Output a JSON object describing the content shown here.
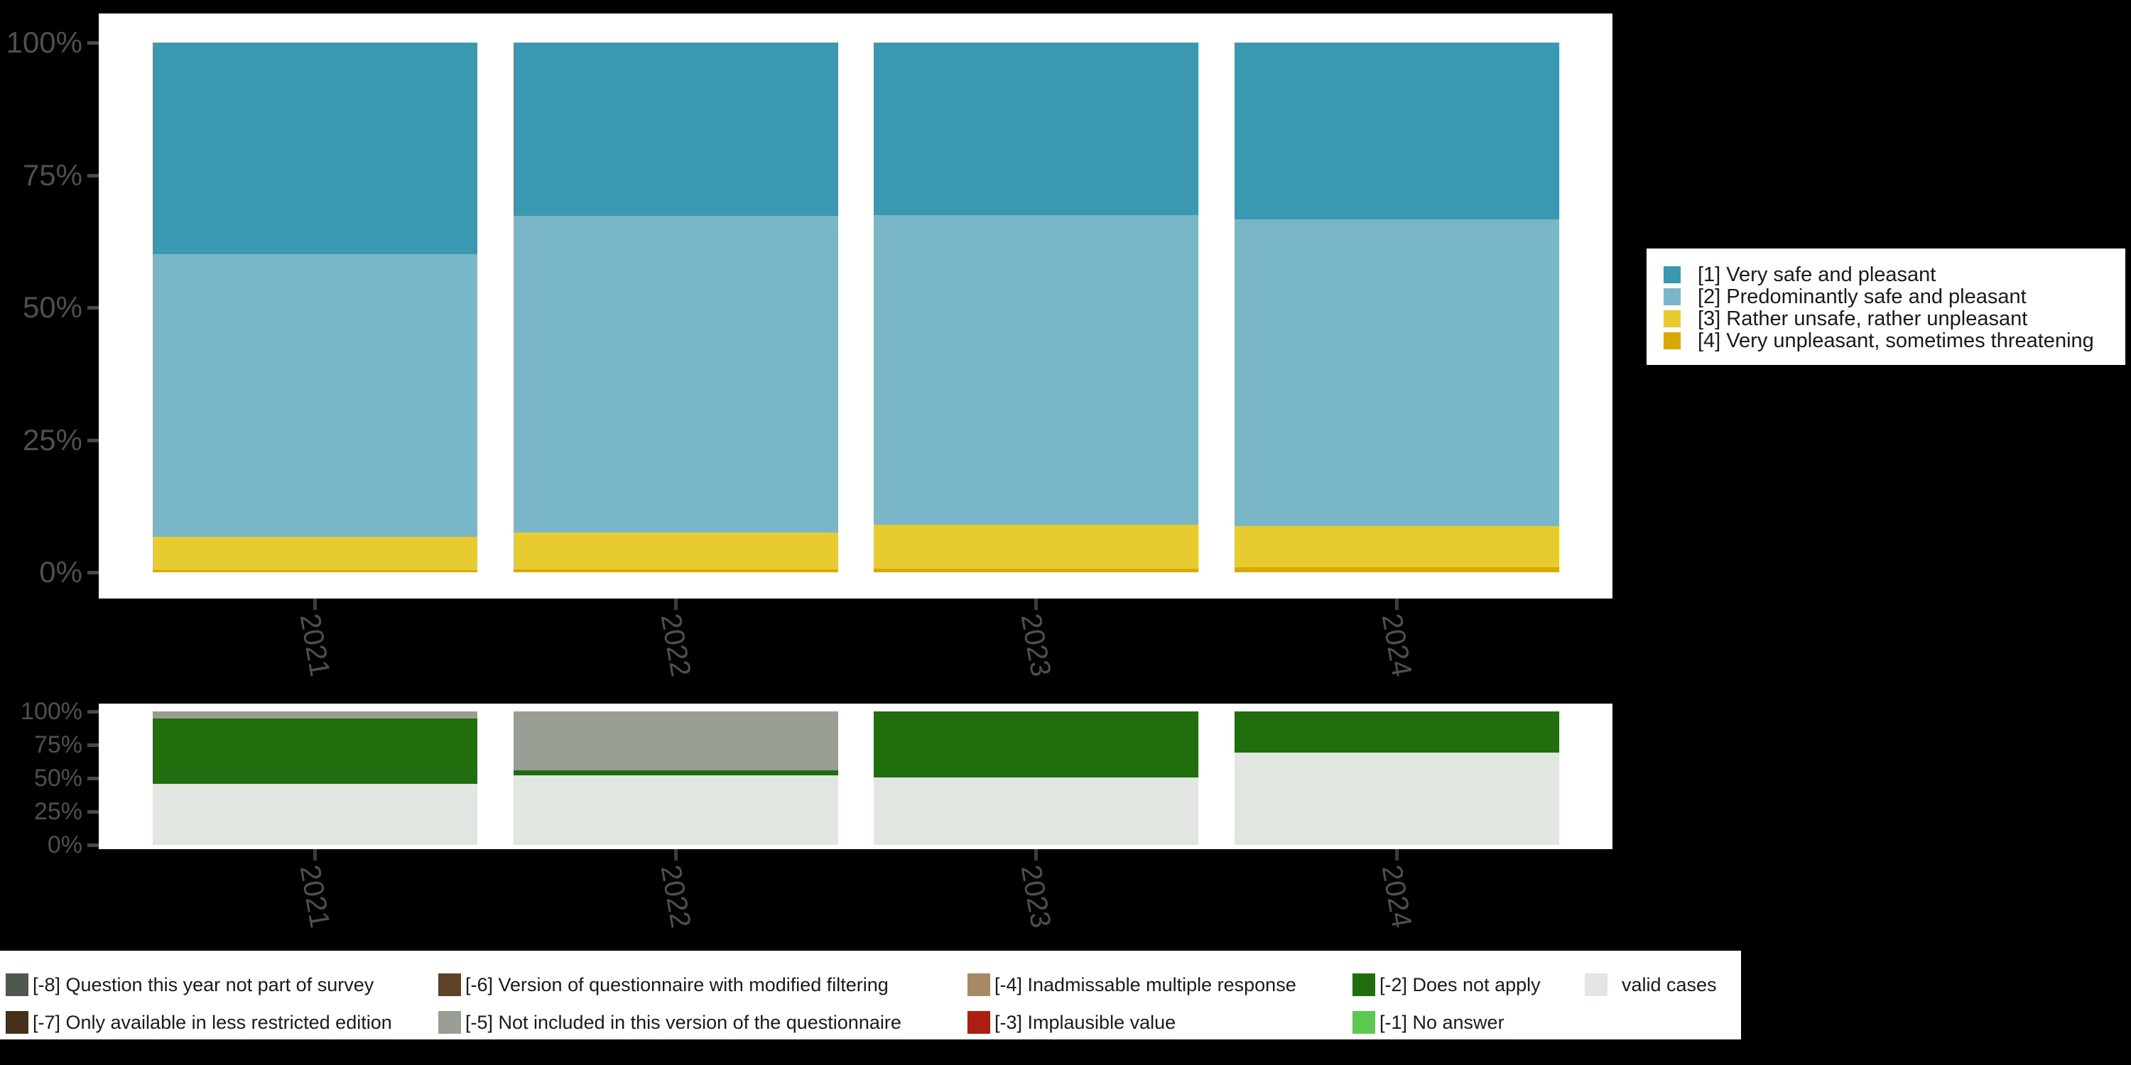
{
  "page": {
    "background": "#000000",
    "panel_background": "#ffffff",
    "axis_text_color": "#4f4f4f",
    "legend_text_color": "#1a1a1a"
  },
  "chart_data": [
    {
      "id": "responses",
      "type": "bar",
      "stacked": true,
      "orientation": "vertical",
      "categories": [
        "2021",
        "2022",
        "2023",
        "2024"
      ],
      "y_tick_labels": [
        "100%",
        "75%",
        "50%",
        "25%",
        "0%"
      ],
      "ylim": [
        0,
        100
      ],
      "grid": false,
      "legend_position": "right",
      "series": [
        {
          "name": "[1] Very safe and pleasant",
          "color": "#3a99b0",
          "values": [
            40.0,
            32.7,
            32.6,
            33.4
          ]
        },
        {
          "name": "[2] Predominantly safe and pleasant",
          "color": "#78b6c8",
          "values": [
            53.3,
            59.8,
            58.4,
            57.9
          ]
        },
        {
          "name": "[3] Rather unsafe, rather unpleasant",
          "color": "#e8cb2f",
          "values": [
            6.3,
            7.0,
            8.3,
            7.8
          ]
        },
        {
          "name": "[4] Very unpleasant, sometimes threatening",
          "color": "#d8a900",
          "values": [
            0.4,
            0.5,
            0.7,
            0.9
          ]
        }
      ]
    },
    {
      "id": "missing-values",
      "type": "bar",
      "stacked": true,
      "orientation": "vertical",
      "categories": [
        "2021",
        "2022",
        "2023",
        "2024"
      ],
      "y_tick_labels": [
        "100%",
        "75%",
        "50%",
        "25%",
        "0%"
      ],
      "ylim": [
        0,
        100
      ],
      "grid": false,
      "legend_position": "bottom",
      "series": [
        {
          "name": "[-5] Not included in this version of the questionnaire",
          "color": "#989e94",
          "values": [
            5.3,
            44.1,
            0,
            0
          ]
        },
        {
          "name": "[-2] Does not apply",
          "color": "#216e0e",
          "values": [
            48.9,
            3.7,
            49.5,
            30.9
          ]
        },
        {
          "name": "valid cases",
          "color": "#e2e6e0",
          "values": [
            45.8,
            52.2,
            50.5,
            69.1
          ]
        }
      ]
    }
  ],
  "response_legend": {
    "items": [
      {
        "label": "[1] Very safe and pleasant",
        "color": "#3a99b0"
      },
      {
        "label": "[2] Predominantly safe and pleasant",
        "color": "#78b6c8"
      },
      {
        "label": "[3] Rather unsafe, rather unpleasant",
        "color": "#e8cb2f"
      },
      {
        "label": "[4] Very unpleasant, sometimes threatening",
        "color": "#d8a900"
      }
    ]
  },
  "missing_legend": {
    "columns": [
      {
        "row1": {
          "label": "[-8] Question this year not part of survey",
          "color": "#4e584f"
        },
        "row2": {
          "label": "[-7] Only available in less restricted edition",
          "color": "#46301c"
        }
      },
      {
        "row1": {
          "label": "[-6] Version of questionnaire with modified filtering",
          "color": "#5d4226"
        },
        "row2": {
          "label": "[-5] Not included in this version of the questionnaire",
          "color": "#989e94"
        }
      },
      {
        "row1": {
          "label": "[-4] Inadmissable multiple response",
          "color": "#a78a63"
        },
        "row2": {
          "label": "[-3] Implausible value",
          "color": "#ae1e10"
        }
      },
      {
        "row1": {
          "label": "[-2] Does not apply",
          "color": "#216e0e"
        },
        "row2": {
          "label": "[-1] No answer",
          "color": "#5bc850"
        }
      },
      {
        "row1": {
          "label": "valid cases",
          "color": "#e2e6e0"
        },
        "row2": null
      }
    ]
  }
}
